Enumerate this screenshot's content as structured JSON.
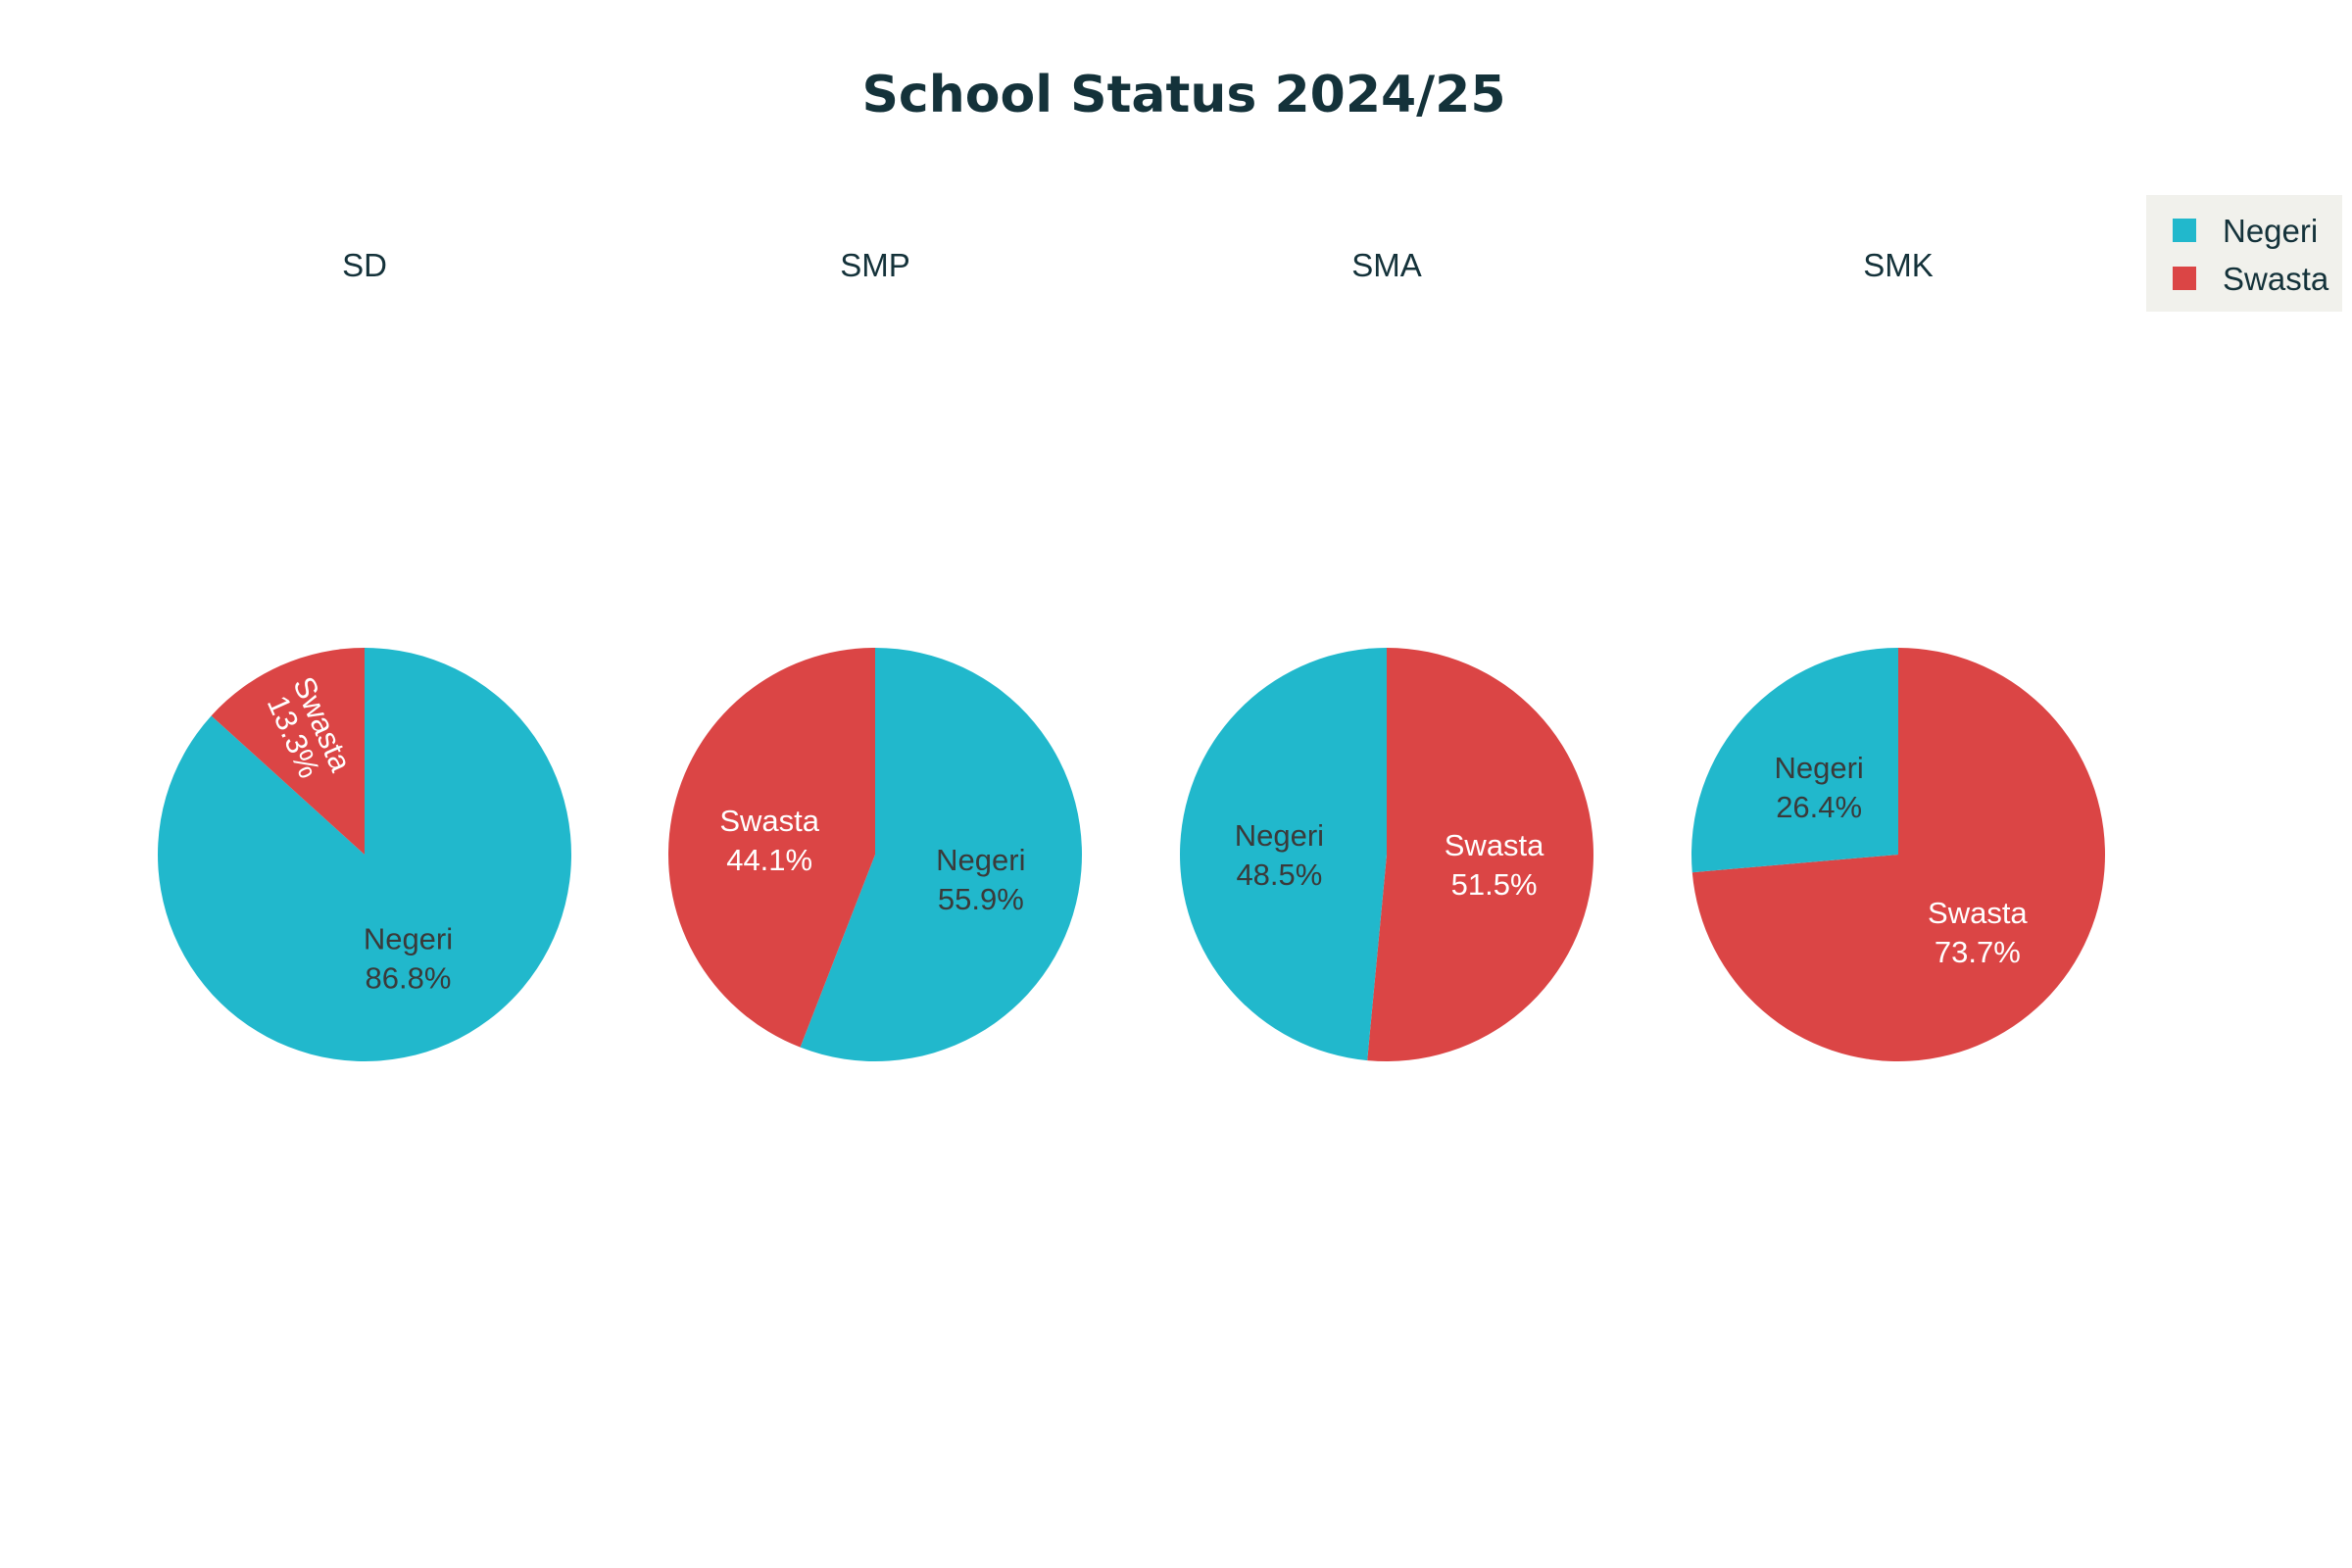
{
  "chart_data": {
    "type": "pie",
    "title": "School Status 2024/25",
    "series_names": [
      "Negeri",
      "Swasta"
    ],
    "colors": {
      "Negeri": "#21b8cc",
      "Swasta": "#db4545",
      "legend_background": "#f1f1ec",
      "title_text": "#14323a",
      "dark_label": "#3a3a3a",
      "light_label": "#ffffff"
    },
    "legend": {
      "placement": "top-right",
      "entries": [
        "Negeri",
        "Swasta"
      ]
    },
    "pies": [
      {
        "title": "SD",
        "slices": [
          {
            "label": "Negeri",
            "value": 86.8,
            "text": "86.8%"
          },
          {
            "label": "Swasta",
            "value": 13.3,
            "text": "13.3%"
          }
        ]
      },
      {
        "title": "SMP",
        "slices": [
          {
            "label": "Negeri",
            "value": 55.9,
            "text": "55.9%"
          },
          {
            "label": "Swasta",
            "value": 44.1,
            "text": "44.1%"
          }
        ]
      },
      {
        "title": "SMA",
        "slices": [
          {
            "label": "Swasta",
            "value": 51.5,
            "text": "51.5%"
          },
          {
            "label": "Negeri",
            "value": 48.5,
            "text": "48.5%"
          }
        ]
      },
      {
        "title": "SMK",
        "slices": [
          {
            "label": "Swasta",
            "value": 73.7,
            "text": "73.7%"
          },
          {
            "label": "Negeri",
            "value": 26.4,
            "text": "26.4%"
          }
        ]
      }
    ]
  }
}
